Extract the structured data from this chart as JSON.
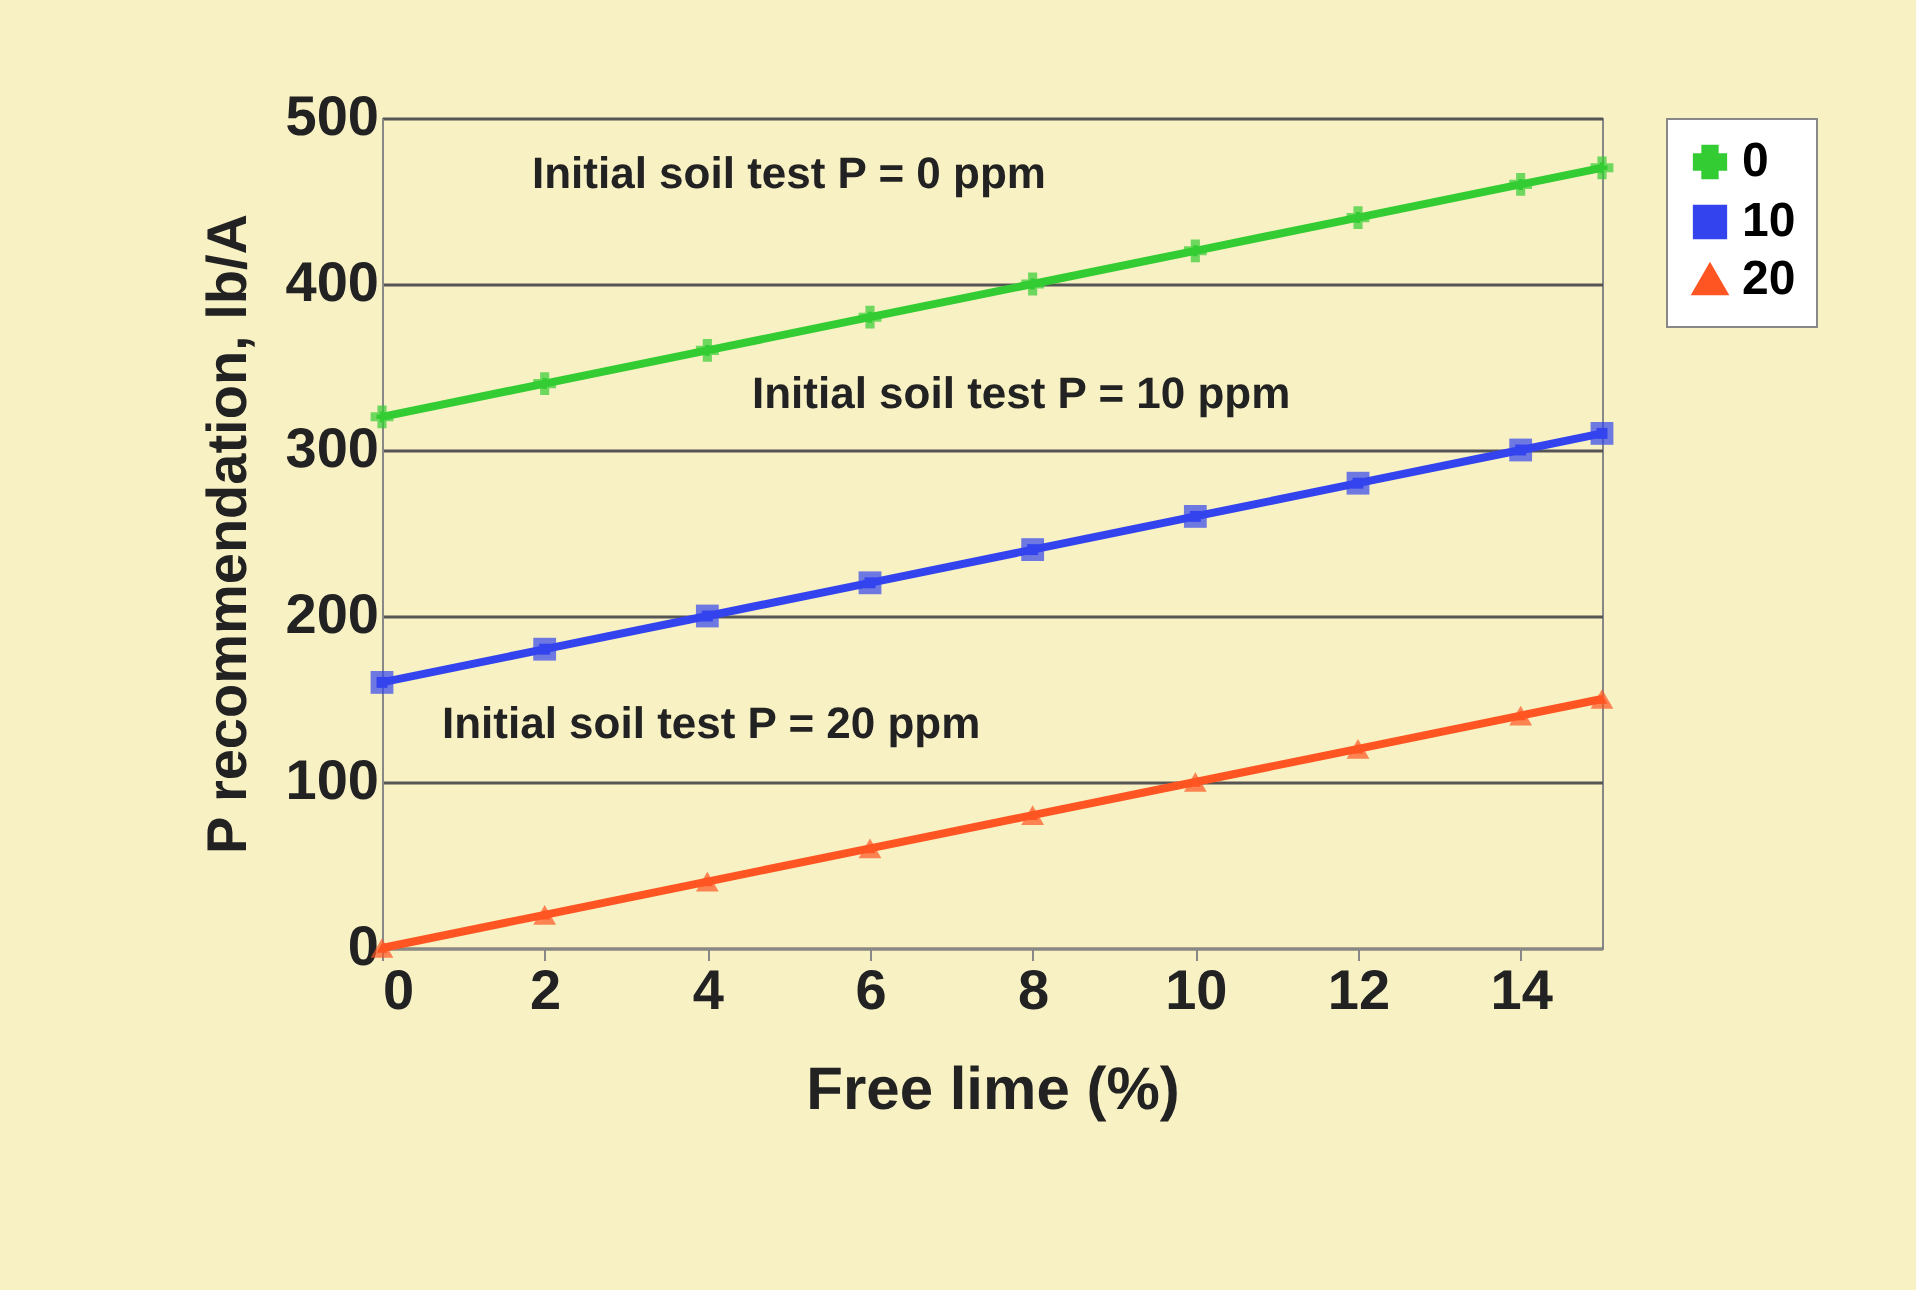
{
  "chart_data": {
    "type": "line",
    "xlabel": "Free lime (%)",
    "ylabel": "P recommendation, lb/A",
    "x": [
      0,
      2,
      4,
      6,
      8,
      10,
      12,
      14,
      15
    ],
    "series": [
      {
        "name": "0",
        "color": "#33cc33",
        "marker": "cross",
        "values": [
          320,
          340,
          360,
          380,
          400,
          420,
          440,
          460,
          470
        ]
      },
      {
        "name": "10",
        "color": "#3344ee",
        "marker": "square",
        "values": [
          160,
          180,
          200,
          220,
          240,
          260,
          280,
          300,
          310
        ]
      },
      {
        "name": "20",
        "color": "#ff5522",
        "marker": "triangle",
        "values": [
          0,
          20,
          40,
          60,
          80,
          100,
          120,
          140,
          150
        ]
      }
    ],
    "xlim": [
      0,
      15
    ],
    "xticks": [
      0,
      2,
      4,
      6,
      8,
      10,
      12,
      14
    ],
    "ylim": [
      0,
      500
    ],
    "yticks": [
      0,
      100,
      200,
      300,
      400,
      500
    ],
    "grid": "y",
    "legend": "right",
    "annotations": [
      "Initial soil test P = 0  ppm",
      "Initial soil test P = 10 ppm",
      "Initial soil test P = 20 ppm"
    ]
  }
}
